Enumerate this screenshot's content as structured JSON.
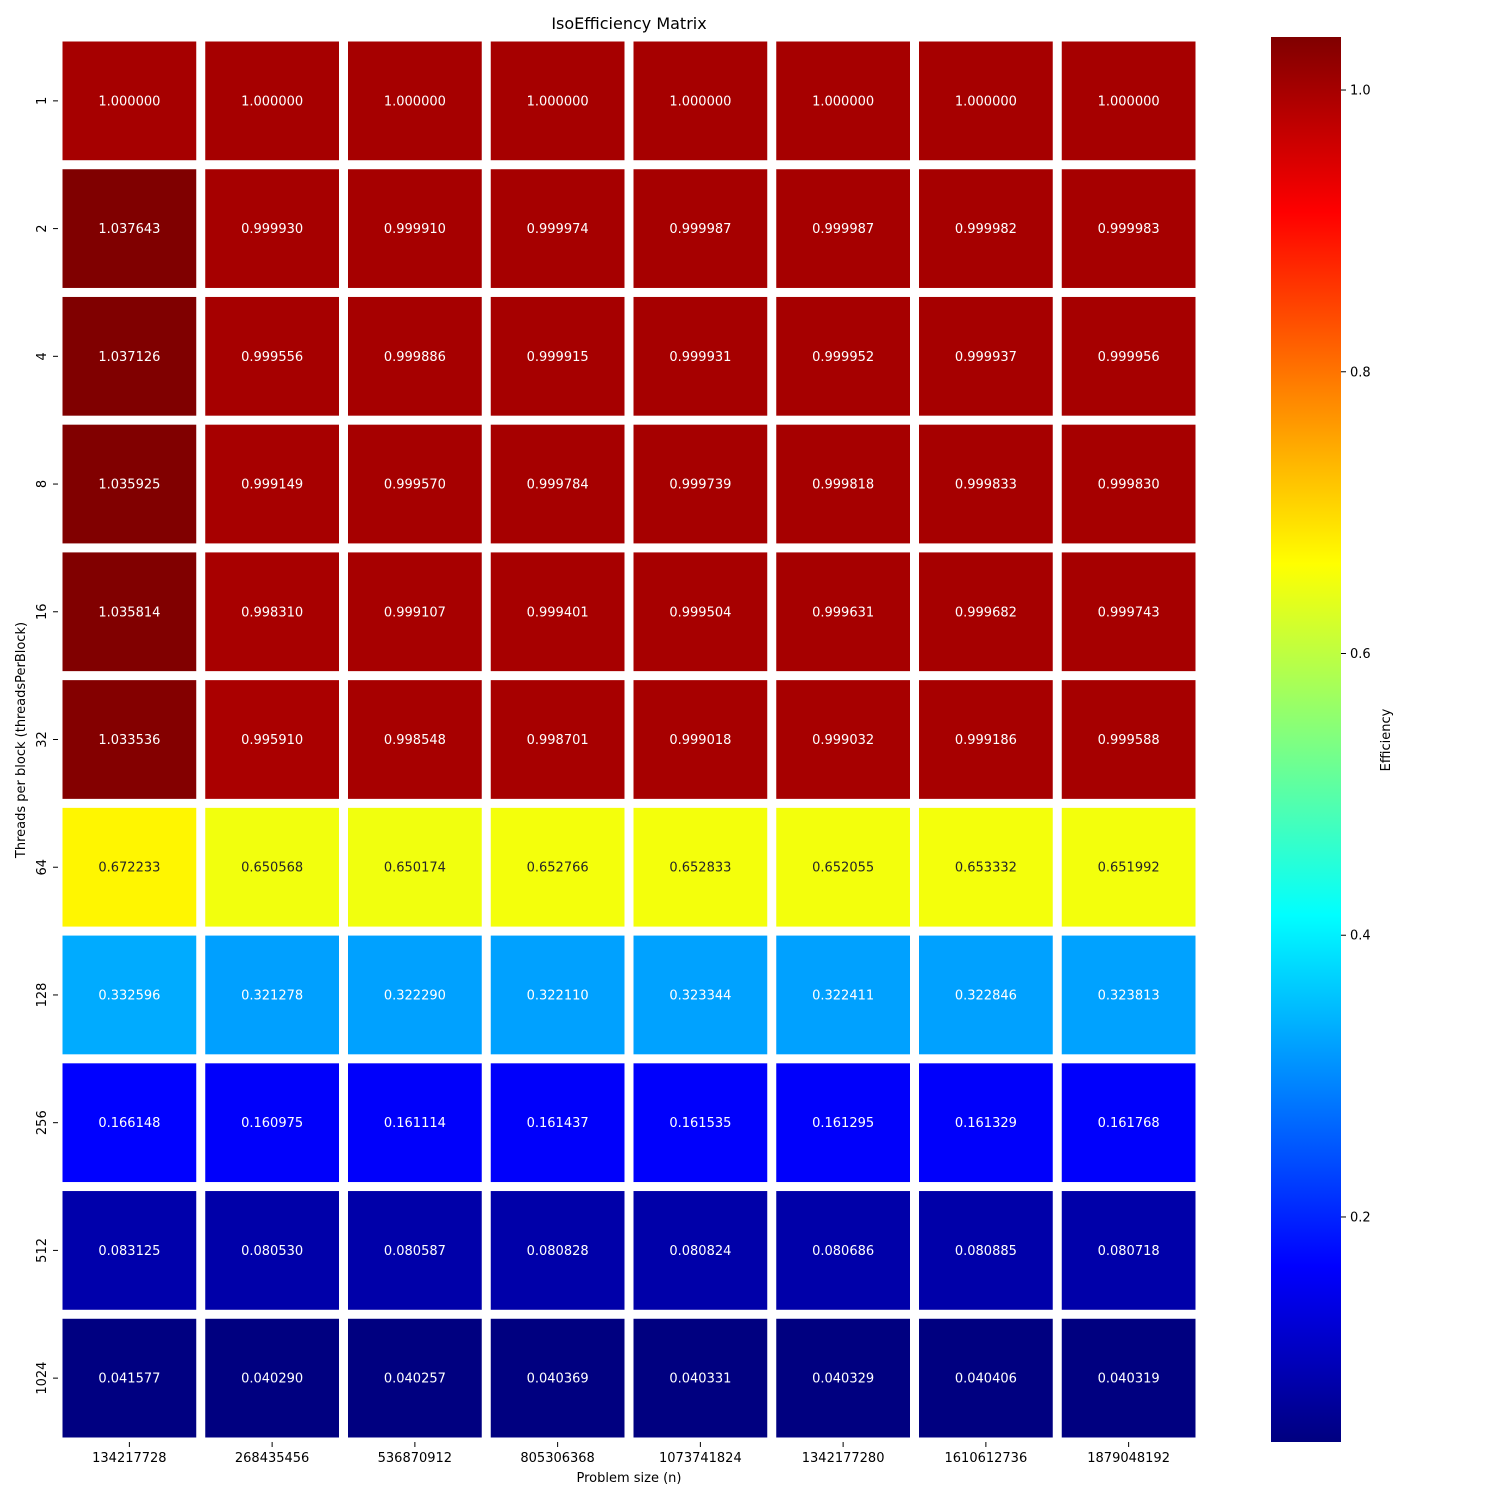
{
  "chart_data": {
    "type": "heatmap",
    "title": "IsoEfficiency Matrix",
    "xlabel": "Problem size (n)",
    "ylabel": "Threads per block (threadsPerBlock)",
    "x_categories": [
      "134217728",
      "268435456",
      "536870912",
      "805306368",
      "1073741824",
      "1342177280",
      "1610612736",
      "1879048192"
    ],
    "y_categories": [
      "1",
      "2",
      "4",
      "8",
      "16",
      "32",
      "64",
      "128",
      "256",
      "512",
      "1024"
    ],
    "values": [
      [
        "1.000000",
        "1.000000",
        "1.000000",
        "1.000000",
        "1.000000",
        "1.000000",
        "1.000000",
        "1.000000"
      ],
      [
        "1.037643",
        "0.999930",
        "0.999910",
        "0.999974",
        "0.999987",
        "0.999987",
        "0.999982",
        "0.999983"
      ],
      [
        "1.037126",
        "0.999556",
        "0.999886",
        "0.999915",
        "0.999931",
        "0.999952",
        "0.999937",
        "0.999956"
      ],
      [
        "1.035925",
        "0.999149",
        "0.999570",
        "0.999784",
        "0.999739",
        "0.999818",
        "0.999833",
        "0.999830"
      ],
      [
        "1.035814",
        "0.998310",
        "0.999107",
        "0.999401",
        "0.999504",
        "0.999631",
        "0.999682",
        "0.999743"
      ],
      [
        "1.033536",
        "0.995910",
        "0.998548",
        "0.998701",
        "0.999018",
        "0.999032",
        "0.999186",
        "0.999588"
      ],
      [
        "0.672233",
        "0.650568",
        "0.650174",
        "0.652766",
        "0.652833",
        "0.652055",
        "0.653332",
        "0.651992"
      ],
      [
        "0.332596",
        "0.321278",
        "0.322290",
        "0.322110",
        "0.323344",
        "0.322411",
        "0.322846",
        "0.323813"
      ],
      [
        "0.166148",
        "0.160975",
        "0.161114",
        "0.161437",
        "0.161535",
        "0.161295",
        "0.161329",
        "0.161768"
      ],
      [
        "0.083125",
        "0.080530",
        "0.080587",
        "0.080828",
        "0.080824",
        "0.080686",
        "0.080885",
        "0.080718"
      ],
      [
        "0.041577",
        "0.040290",
        "0.040257",
        "0.040369",
        "0.040331",
        "0.040329",
        "0.040406",
        "0.040319"
      ]
    ],
    "colorbar": {
      "label": "Efficiency",
      "colormap": "jet",
      "range": [
        0.040257,
        1.037643
      ],
      "ticks": [
        "0.2",
        "0.4",
        "0.6",
        "0.8",
        "1.0"
      ]
    },
    "grid": false,
    "cell_separator_color": "#ffffff"
  }
}
